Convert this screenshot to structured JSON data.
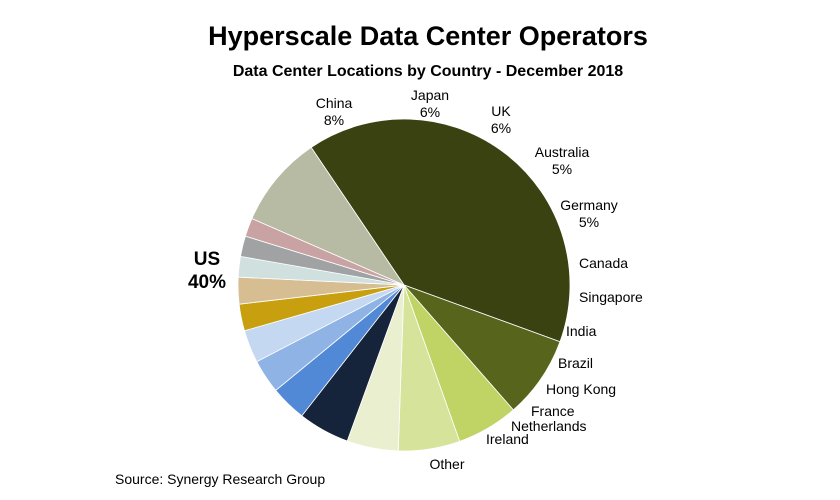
{
  "chart_data": {
    "type": "pie",
    "title": "Hyperscale Data Center Operators",
    "subtitle": "Data Center Locations by Country - December 2018",
    "source": "Source: Synergy Research Group",
    "slices": [
      {
        "label": "US",
        "value_label": "40%",
        "value": 40,
        "color": "#3a4212"
      },
      {
        "label": "China",
        "value_label": "8%",
        "value": 8,
        "color": "#57641c"
      },
      {
        "label": "Japan",
        "value_label": "6%",
        "value": 6,
        "color": "#c0d465"
      },
      {
        "label": "UK",
        "value_label": "6%",
        "value": 6,
        "color": "#d6e39a"
      },
      {
        "label": "Australia",
        "value_label": "5%",
        "value": 5,
        "color": "#eaf0cf"
      },
      {
        "label": "Germany",
        "value_label": "5%",
        "value": 5,
        "color": "#15233b"
      },
      {
        "label": "Canada",
        "value_label": "",
        "value": 3.5,
        "color": "#5289d6"
      },
      {
        "label": "Singapore",
        "value_label": "",
        "value": 3.3,
        "color": "#8fb3e4"
      },
      {
        "label": "India",
        "value_label": "",
        "value": 3.2,
        "color": "#c5d8f1"
      },
      {
        "label": "Brazil",
        "value_label": "",
        "value": 2.6,
        "color": "#c79f0f"
      },
      {
        "label": "Hong Kong",
        "value_label": "",
        "value": 2.6,
        "color": "#d6be92"
      },
      {
        "label": "France",
        "value_label": "",
        "value": 2.0,
        "color": "#cfe0df"
      },
      {
        "label": "Netherlands",
        "value_label": "",
        "value": 2.0,
        "color": "#a1a2a4"
      },
      {
        "label": "Ireland",
        "value_label": "",
        "value": 1.8,
        "color": "#c9a3a3"
      },
      {
        "label": "Other",
        "value_label": "",
        "value": 9.0,
        "color": "#b7bba3"
      }
    ]
  }
}
